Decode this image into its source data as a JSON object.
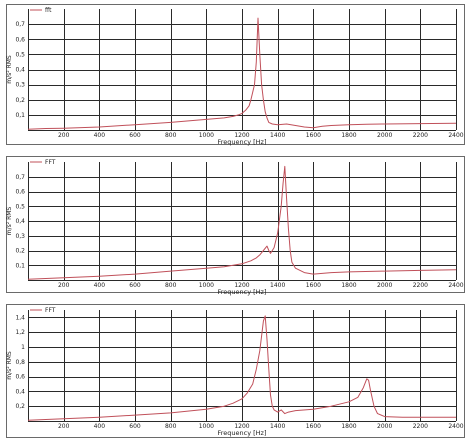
{
  "colors": {
    "series": "#c0505a",
    "grid": "#2a2a2a",
    "frame": "#6a6a6a"
  },
  "chart_data": [
    {
      "type": "line",
      "legend": "fft",
      "xlabel": "Frequency [Hz]",
      "ylabel": "m/s² RMS",
      "xlim": [
        0,
        2400
      ],
      "ylim": [
        0,
        0.8
      ],
      "xticks": [
        200,
        400,
        600,
        800,
        1000,
        1200,
        1400,
        1600,
        1800,
        2000,
        2200,
        2400
      ],
      "yticks": [
        {
          "v": 0.1,
          "label": "0,1"
        },
        {
          "v": 0.2,
          "label": "0,2"
        },
        {
          "v": 0.3,
          "label": "0,3"
        },
        {
          "v": 0.4,
          "label": "0,4"
        },
        {
          "v": 0.5,
          "label": "0,5"
        },
        {
          "v": 0.6,
          "label": "0,6"
        },
        {
          "v": 0.7,
          "label": "0,7"
        }
      ],
      "grid": true,
      "series": [
        {
          "name": "fft",
          "x": [
            0,
            100,
            200,
            400,
            600,
            800,
            1000,
            1100,
            1150,
            1180,
            1200,
            1220,
            1240,
            1250,
            1260,
            1270,
            1280,
            1290,
            1300,
            1310,
            1320,
            1330,
            1340,
            1350,
            1370,
            1400,
            1450,
            1500,
            1550,
            1600,
            1650,
            1700,
            1800,
            1900,
            2000,
            2200,
            2400
          ],
          "y": [
            0.005,
            0.01,
            0.012,
            0.02,
            0.035,
            0.05,
            0.07,
            0.08,
            0.09,
            0.1,
            0.11,
            0.13,
            0.16,
            0.2,
            0.25,
            0.3,
            0.45,
            0.74,
            0.5,
            0.3,
            0.2,
            0.12,
            0.08,
            0.05,
            0.04,
            0.035,
            0.04,
            0.03,
            0.02,
            0.015,
            0.025,
            0.03,
            0.035,
            0.038,
            0.04,
            0.042,
            0.045
          ]
        }
      ]
    },
    {
      "type": "line",
      "legend": "FFT",
      "xlabel": "Frequency [Hz]",
      "ylabel": "m/s² RMS",
      "xlim": [
        0,
        2400
      ],
      "ylim": [
        0,
        0.8
      ],
      "xticks": [
        200,
        400,
        600,
        800,
        1000,
        1200,
        1400,
        1600,
        1800,
        2000,
        2200,
        2400
      ],
      "yticks": [
        {
          "v": 0.1,
          "label": "0,1"
        },
        {
          "v": 0.2,
          "label": "0,2"
        },
        {
          "v": 0.3,
          "label": "0,3"
        },
        {
          "v": 0.4,
          "label": "0,4"
        },
        {
          "v": 0.5,
          "label": "0,5"
        },
        {
          "v": 0.6,
          "label": "0,6"
        },
        {
          "v": 0.7,
          "label": "0,7"
        }
      ],
      "grid": true,
      "series": [
        {
          "name": "FFT",
          "x": [
            0,
            100,
            200,
            400,
            600,
            800,
            1000,
            1100,
            1200,
            1250,
            1280,
            1300,
            1320,
            1340,
            1350,
            1360,
            1380,
            1400,
            1420,
            1430,
            1440,
            1450,
            1460,
            1470,
            1480,
            1500,
            1550,
            1600,
            1700,
            1800,
            2000,
            2200,
            2400
          ],
          "y": [
            0.005,
            0.01,
            0.015,
            0.025,
            0.04,
            0.06,
            0.08,
            0.09,
            0.11,
            0.13,
            0.15,
            0.17,
            0.2,
            0.23,
            0.2,
            0.18,
            0.22,
            0.32,
            0.5,
            0.65,
            0.77,
            0.55,
            0.35,
            0.2,
            0.12,
            0.08,
            0.05,
            0.04,
            0.05,
            0.055,
            0.06,
            0.065,
            0.07
          ]
        }
      ]
    },
    {
      "type": "line",
      "legend": "FFT",
      "xlabel": "Frequency [Hz]",
      "ylabel": "m/s² RMS",
      "xlim": [
        0,
        2400
      ],
      "ylim": [
        0,
        1.5
      ],
      "xticks": [
        200,
        400,
        600,
        800,
        1000,
        1200,
        1400,
        1600,
        1800,
        2000,
        2200,
        2400
      ],
      "yticks": [
        {
          "v": 0.2,
          "label": "0,2"
        },
        {
          "v": 0.4,
          "label": "0,4"
        },
        {
          "v": 0.6,
          "label": "0,6"
        },
        {
          "v": 0.8,
          "label": "0,8"
        },
        {
          "v": 1.0,
          "label": "1"
        },
        {
          "v": 1.2,
          "label": "1,2"
        },
        {
          "v": 1.4,
          "label": "1,4"
        }
      ],
      "grid": true,
      "series": [
        {
          "name": "FFT",
          "x": [
            0,
            100,
            200,
            400,
            600,
            800,
            1000,
            1100,
            1150,
            1200,
            1230,
            1260,
            1280,
            1300,
            1310,
            1320,
            1330,
            1340,
            1350,
            1360,
            1370,
            1380,
            1400,
            1420,
            1440,
            1460,
            1500,
            1600,
            1700,
            1800,
            1850,
            1880,
            1900,
            1910,
            1920,
            1940,
            1960,
            2000,
            2100,
            2200,
            2400
          ],
          "y": [
            0.01,
            0.02,
            0.03,
            0.05,
            0.08,
            0.11,
            0.16,
            0.2,
            0.24,
            0.3,
            0.38,
            0.5,
            0.7,
            0.95,
            1.15,
            1.35,
            1.42,
            1.1,
            0.7,
            0.35,
            0.2,
            0.15,
            0.12,
            0.15,
            0.1,
            0.12,
            0.14,
            0.16,
            0.2,
            0.26,
            0.32,
            0.45,
            0.57,
            0.55,
            0.42,
            0.2,
            0.1,
            0.06,
            0.05,
            0.05,
            0.05
          ]
        }
      ]
    }
  ]
}
